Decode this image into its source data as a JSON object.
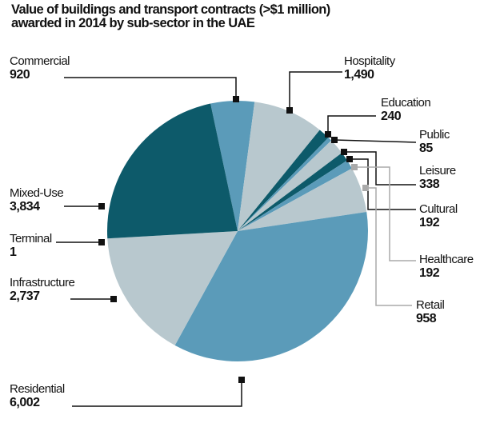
{
  "chart_data": {
    "type": "pie",
    "title": "Value of buildings and transport contracts (>$1 million) awarded in 2014 by sub-sector in the UAE",
    "title_lines": [
      "Value of buildings and transport contracts (>$1 million)",
      "awarded in 2014 by sub-sector in the UAE"
    ],
    "slices": [
      {
        "label": "Commercial",
        "value": 920,
        "display": "920",
        "color": "#5b9bb9"
      },
      {
        "label": "Hospitality",
        "value": 1490,
        "display": "1,490",
        "color": "#b8c8ce"
      },
      {
        "label": "Education",
        "value": 240,
        "display": "240",
        "color": "#0d5a6a"
      },
      {
        "label": "Public",
        "value": 85,
        "display": "85",
        "color": "#5b9bb9"
      },
      {
        "label": "Leisure",
        "value": 338,
        "display": "338",
        "color": "#b8c8ce"
      },
      {
        "label": "Cultural",
        "value": 192,
        "display": "192",
        "color": "#0d5a6a"
      },
      {
        "label": "Healthcare",
        "value": 192,
        "display": "192",
        "color": "#5b9bb9"
      },
      {
        "label": "Retail",
        "value": 958,
        "display": "958",
        "color": "#b8c8ce"
      },
      {
        "label": "Residential",
        "value": 6002,
        "display": "6,002",
        "color": "#5b9bb9"
      },
      {
        "label": "Infrastructure",
        "value": 2737,
        "display": "2,737",
        "color": "#b8c8ce"
      },
      {
        "label": "Terminal",
        "value": 1,
        "display": "1",
        "color": "#b8c8ce"
      },
      {
        "label": "Mixed-Use",
        "value": 3834,
        "display": "3,834",
        "color": "#0d5a6a"
      }
    ],
    "legend": "none (callout labels)"
  }
}
